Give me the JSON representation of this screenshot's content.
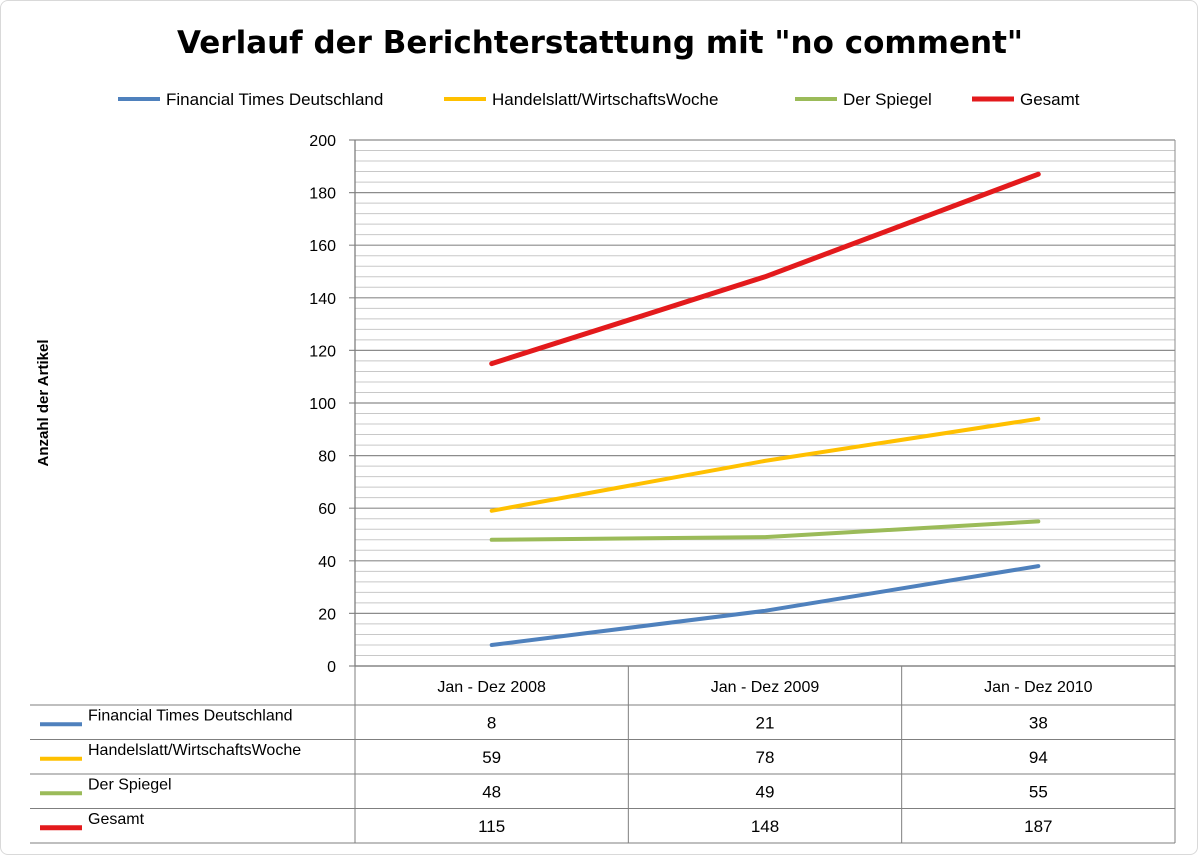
{
  "chart_data": {
    "type": "line",
    "title": "Verlauf der Berichterstattung  mit \"no comment\"",
    "ylabel": "Anzahl der Artikel",
    "xlabel": "",
    "categories": [
      "Jan - Dez 2008",
      "Jan - Dez 2009",
      "Jan - Dez 2010"
    ],
    "ylim": [
      0,
      200
    ],
    "yticks": [
      0,
      20,
      40,
      60,
      80,
      100,
      120,
      140,
      160,
      180,
      200
    ],
    "minor_grid_step": 4,
    "grid": true,
    "legend_position": "top",
    "data_table": true,
    "series": [
      {
        "name": "Financial Times Deutschland",
        "values": [
          8,
          21,
          38
        ],
        "color": "#4f81bd"
      },
      {
        "name": "Handelslatt/WirtschaftsWoche",
        "values": [
          59,
          78,
          94
        ],
        "color": "#ffc000"
      },
      {
        "name": "Der Spiegel",
        "values": [
          48,
          49,
          55
        ],
        "color": "#9bbb59"
      },
      {
        "name": "Gesamt",
        "values": [
          115,
          148,
          187
        ],
        "color": "#e31a1c"
      }
    ]
  }
}
